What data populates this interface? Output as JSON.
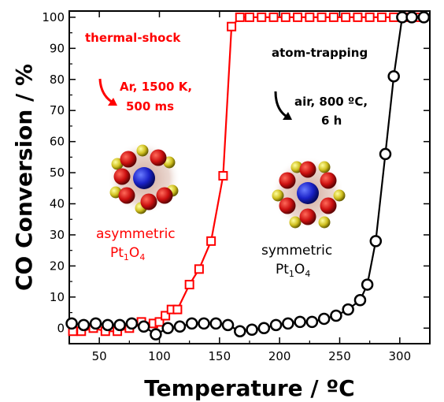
{
  "chart_data": {
    "type": "line",
    "xlabel": "Temperature / ºC",
    "ylabel": "CO Conversion / %",
    "xlim": [
      25,
      325
    ],
    "ylim": [
      -5,
      102
    ],
    "x_ticks": [
      50,
      100,
      150,
      200,
      250,
      300
    ],
    "y_ticks": [
      0,
      10,
      20,
      30,
      40,
      50,
      60,
      70,
      80,
      90,
      100
    ],
    "grid": false,
    "series": [
      {
        "name": "thermal-shock",
        "color": "#ff0000",
        "marker": "square",
        "x": [
          28,
          35,
          45,
          55,
          65,
          75,
          85,
          95,
          100,
          105,
          110,
          115,
          125,
          133,
          143,
          153,
          160,
          167,
          175,
          185,
          195,
          205,
          215,
          225,
          235,
          245,
          255,
          265,
          275,
          285,
          295,
          305,
          315
        ],
        "y": [
          -1,
          -1,
          0,
          -1,
          -1,
          0,
          2,
          1.5,
          2,
          4,
          6,
          6,
          14,
          19,
          28,
          49,
          97,
          100,
          100,
          100,
          100,
          100,
          100,
          100,
          100,
          100,
          100,
          100,
          100,
          100,
          100,
          100,
          100
        ]
      },
      {
        "name": "atom-trapping",
        "color": "#000000",
        "marker": "circle",
        "x": [
          27,
          37,
          47,
          57,
          67,
          77,
          87,
          97,
          107,
          117,
          127,
          137,
          147,
          157,
          167,
          177,
          187,
          197,
          207,
          217,
          227,
          237,
          247,
          257,
          267,
          273,
          280,
          288,
          295,
          302,
          310,
          320
        ],
        "y": [
          1.5,
          1,
          1.5,
          1,
          1,
          1.5,
          0.5,
          -2,
          0,
          0.5,
          1.5,
          1.5,
          1.5,
          1,
          -1,
          -0.5,
          0,
          1,
          1.5,
          2,
          2,
          3,
          4,
          6,
          9,
          14,
          28,
          56,
          81,
          100,
          100,
          100
        ]
      }
    ],
    "annotations": {
      "thermal_shock": {
        "title": "thermal-shock",
        "line1": "Ar, 1500 K,",
        "line2": "500 ms",
        "label_line1": "asymmetric",
        "label_line2_main": "Pt",
        "label_sub1": "1",
        "label_mid": "O",
        "label_sub2": "4"
      },
      "atom_trapping": {
        "title": "atom-trapping",
        "line1": "air, 800 ºC,",
        "line2": "6 h",
        "label_line1": "symmetric",
        "label_line2_main": "Pt",
        "label_sub1": "1",
        "label_mid": "O",
        "label_sub2": "4"
      }
    }
  }
}
